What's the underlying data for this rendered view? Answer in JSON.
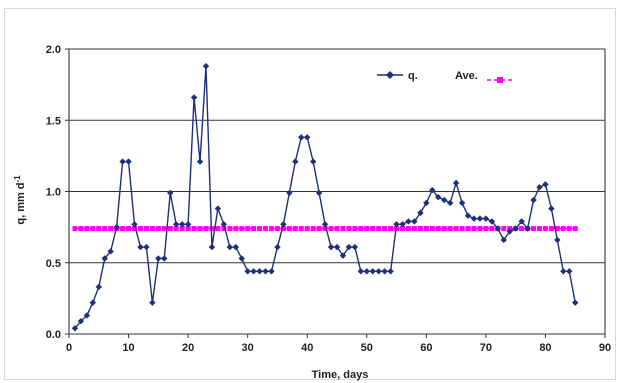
{
  "chart_data": {
    "type": "line",
    "title": "",
    "xlabel": "Time, days",
    "ylabel": "q, mm d",
    "ylabel_superscript": "-1",
    "xlim": [
      0,
      90
    ],
    "ylim": [
      0,
      2.0
    ],
    "x_ticks": [
      "0",
      "10",
      "20",
      "30",
      "40",
      "50",
      "60",
      "70",
      "80",
      "90"
    ],
    "y_ticks": [
      "0.0",
      "0.5",
      "1.0",
      "1.5",
      "2.0"
    ],
    "grid": "horizontal",
    "legend_position": "top-right",
    "series": [
      {
        "name": "q.",
        "color": "#1f2f7a",
        "marker": "diamond",
        "x": [
          1,
          2,
          3,
          4,
          5,
          6,
          7,
          8,
          9,
          10,
          11,
          12,
          13,
          14,
          15,
          16,
          17,
          18,
          19,
          20,
          21,
          22,
          23,
          24,
          25,
          26,
          27,
          28,
          29,
          30,
          31,
          32,
          33,
          34,
          35,
          36,
          37,
          38,
          39,
          40,
          41,
          42,
          43,
          44,
          45,
          46,
          47,
          48,
          49,
          50,
          51,
          52,
          53,
          54,
          55,
          56,
          57,
          58,
          59,
          60,
          61,
          62,
          63,
          64,
          65,
          66,
          67,
          68,
          69,
          70,
          71,
          72,
          73,
          74,
          75,
          76,
          77,
          78,
          79,
          80,
          81,
          82,
          83,
          84,
          85
        ],
        "y": [
          0.04,
          0.09,
          0.13,
          0.22,
          0.33,
          0.53,
          0.58,
          0.75,
          1.21,
          1.21,
          0.77,
          0.61,
          0.61,
          0.22,
          0.53,
          0.53,
          0.99,
          0.77,
          0.77,
          0.77,
          1.66,
          1.21,
          1.88,
          0.61,
          0.88,
          0.77,
          0.61,
          0.61,
          0.53,
          0.44,
          0.44,
          0.44,
          0.44,
          0.44,
          0.61,
          0.77,
          0.99,
          1.21,
          1.38,
          1.38,
          1.21,
          0.99,
          0.77,
          0.61,
          0.61,
          0.55,
          0.61,
          0.61,
          0.44,
          0.44,
          0.44,
          0.44,
          0.44,
          0.44,
          0.77,
          0.77,
          0.79,
          0.79,
          0.85,
          0.92,
          1.01,
          0.96,
          0.94,
          0.92,
          1.06,
          0.92,
          0.83,
          0.81,
          0.81,
          0.81,
          0.79,
          0.74,
          0.66,
          0.72,
          0.74,
          0.79,
          0.74,
          0.94,
          1.03,
          1.05,
          0.88,
          0.66,
          0.44,
          0.44,
          0.22
        ]
      },
      {
        "name": "Ave.",
        "color": "#ff00ff",
        "marker": "square",
        "x": [
          1,
          2,
          3,
          4,
          5,
          6,
          7,
          8,
          9,
          10,
          11,
          12,
          13,
          14,
          15,
          16,
          17,
          18,
          19,
          20,
          21,
          22,
          23,
          24,
          25,
          26,
          27,
          28,
          29,
          30,
          31,
          32,
          33,
          34,
          35,
          36,
          37,
          38,
          39,
          40,
          41,
          42,
          43,
          44,
          45,
          46,
          47,
          48,
          49,
          50,
          51,
          52,
          53,
          54,
          55,
          56,
          57,
          58,
          59,
          60,
          61,
          62,
          63,
          64,
          65,
          66,
          67,
          68,
          69,
          70,
          71,
          72,
          73,
          74,
          75,
          76,
          77,
          78,
          79,
          80,
          81,
          82,
          83,
          84,
          85
        ],
        "y": [
          0.74,
          0.74,
          0.74,
          0.74,
          0.74,
          0.74,
          0.74,
          0.74,
          0.74,
          0.74,
          0.74,
          0.74,
          0.74,
          0.74,
          0.74,
          0.74,
          0.74,
          0.74,
          0.74,
          0.74,
          0.74,
          0.74,
          0.74,
          0.74,
          0.74,
          0.74,
          0.74,
          0.74,
          0.74,
          0.74,
          0.74,
          0.74,
          0.74,
          0.74,
          0.74,
          0.74,
          0.74,
          0.74,
          0.74,
          0.74,
          0.74,
          0.74,
          0.74,
          0.74,
          0.74,
          0.74,
          0.74,
          0.74,
          0.74,
          0.74,
          0.74,
          0.74,
          0.74,
          0.74,
          0.74,
          0.74,
          0.74,
          0.74,
          0.74,
          0.74,
          0.74,
          0.74,
          0.74,
          0.74,
          0.74,
          0.74,
          0.74,
          0.74,
          0.74,
          0.74,
          0.74,
          0.74,
          0.74,
          0.74,
          0.74,
          0.74,
          0.74,
          0.74,
          0.74,
          0.74,
          0.74,
          0.74,
          0.74,
          0.74,
          0.74
        ]
      }
    ]
  }
}
